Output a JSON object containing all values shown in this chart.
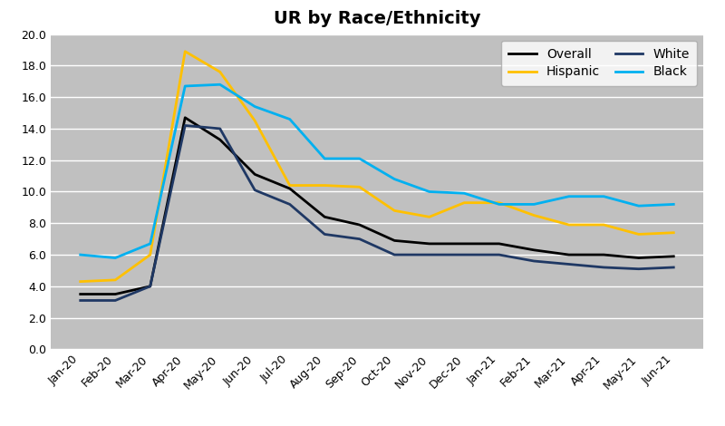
{
  "title": "UR by Race/Ethnicity",
  "x_labels": [
    "Jan-20",
    "Feb-20",
    "Mar-20",
    "Apr-20",
    "May-20",
    "Jun-20",
    "Jul-20",
    "Aug-20",
    "Sep-20",
    "Oct-20",
    "Nov-20",
    "Dec-20",
    "Jan-21",
    "Feb-21",
    "Mar-21",
    "Apr-21",
    "May-21",
    "Jun-21"
  ],
  "series": {
    "Overall": {
      "color": "#000000",
      "linewidth": 2.0,
      "values": [
        3.5,
        3.5,
        4.0,
        14.7,
        13.3,
        11.1,
        10.2,
        8.4,
        7.9,
        6.9,
        6.7,
        6.7,
        6.7,
        6.3,
        6.0,
        6.0,
        5.8,
        5.9
      ]
    },
    "Hispanic": {
      "color": "#FFC000",
      "linewidth": 2.0,
      "values": [
        4.3,
        4.4,
        6.0,
        18.9,
        17.6,
        14.5,
        10.4,
        10.4,
        10.3,
        8.8,
        8.4,
        9.3,
        9.3,
        8.5,
        7.9,
        7.9,
        7.3,
        7.4
      ]
    },
    "White": {
      "color": "#1F3864",
      "linewidth": 2.0,
      "values": [
        3.1,
        3.1,
        4.0,
        14.2,
        14.0,
        10.1,
        9.2,
        7.3,
        7.0,
        6.0,
        6.0,
        6.0,
        6.0,
        5.6,
        5.4,
        5.2,
        5.1,
        5.2
      ]
    },
    "Black": {
      "color": "#00B0F0",
      "linewidth": 2.0,
      "values": [
        6.0,
        5.8,
        6.7,
        16.7,
        16.8,
        15.4,
        14.6,
        12.1,
        12.1,
        10.8,
        10.0,
        9.9,
        9.2,
        9.2,
        9.7,
        9.7,
        9.1,
        9.2
      ]
    }
  },
  "ylim": [
    0.0,
    20.0
  ],
  "yticks": [
    0.0,
    2.0,
    4.0,
    6.0,
    8.0,
    10.0,
    12.0,
    14.0,
    16.0,
    18.0,
    20.0
  ],
  "plot_bg_color": "#C0C0C0",
  "fig_bg_color": "#FFFFFF",
  "legend_order": [
    "Overall",
    "Hispanic",
    "White",
    "Black"
  ],
  "legend_ncol": 2,
  "title_fontsize": 14,
  "tick_fontsize": 9
}
